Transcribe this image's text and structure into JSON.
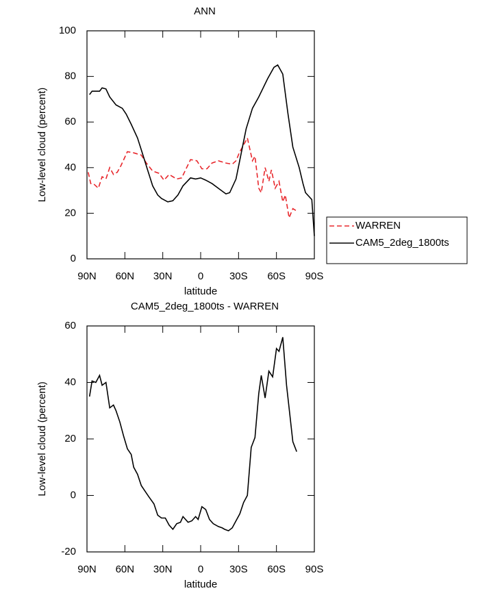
{
  "chart_data": [
    {
      "type": "line",
      "title": "ANN",
      "xlabel": "latitude",
      "ylabel": "Low-level cloud (percent)",
      "xlim": [
        90,
        -90
      ],
      "ylim": [
        0,
        100
      ],
      "xticks": [
        {
          "value": 90,
          "label": "90N"
        },
        {
          "value": 60,
          "label": "60N"
        },
        {
          "value": 30,
          "label": "30N"
        },
        0,
        {
          "value": -30,
          "label": "30S"
        },
        {
          "value": -60,
          "label": "60S"
        },
        {
          "value": -90,
          "label": "90S"
        }
      ],
      "yticks": [
        0,
        20,
        40,
        60,
        80,
        100
      ],
      "legend": "right",
      "series": [
        {
          "name": "WARREN",
          "color": "#e8262b",
          "line_style": "dashed",
          "x": [
            89,
            87,
            85,
            81,
            78,
            75,
            72,
            69,
            66,
            63,
            58,
            53,
            47,
            43,
            38,
            33,
            29,
            25,
            19,
            15,
            8,
            3,
            -1,
            -5,
            -9,
            -14,
            -20,
            -25,
            -28,
            -31,
            -35,
            -37,
            -41,
            -43,
            -46,
            -48,
            -51,
            -54,
            -56,
            -59,
            -62,
            -65,
            -67,
            -70,
            -73,
            -76
          ],
          "values": [
            38,
            33,
            33,
            31,
            36,
            35,
            40,
            37,
            38,
            41,
            47,
            46.5,
            45.5,
            42,
            38.5,
            37.5,
            34.5,
            37,
            35,
            35.5,
            43.5,
            43,
            39.5,
            39.5,
            42,
            43,
            42,
            41.5,
            43,
            47,
            51,
            53,
            43,
            45,
            31,
            29,
            40,
            34,
            39,
            31,
            34,
            25,
            28,
            18,
            22,
            21
          ]
        },
        {
          "name": "CAM5_2deg_1800ts",
          "color": "#000000",
          "line_style": "solid",
          "x": [
            88,
            86,
            80,
            78,
            75,
            72,
            67,
            62,
            59,
            55,
            50,
            46,
            42,
            38,
            34,
            31,
            26,
            22,
            18,
            14,
            8,
            4,
            0,
            -4,
            -9,
            -15,
            -20,
            -23,
            -28,
            -32,
            -36,
            -41,
            -46,
            -53,
            -58,
            -61,
            -65,
            -69,
            -73,
            -78,
            -81,
            -83,
            -88,
            -90
          ],
          "values": [
            72,
            73.5,
            73.5,
            75,
            74.5,
            71,
            67.5,
            66,
            63.5,
            59,
            53,
            46,
            39,
            32,
            28,
            26.5,
            25,
            25.5,
            28,
            32,
            35.5,
            35,
            35.5,
            34.5,
            33,
            30.5,
            28.5,
            29,
            35,
            46,
            57,
            66,
            71,
            79,
            84,
            85,
            81,
            64,
            49,
            40,
            33,
            29,
            26,
            10
          ]
        }
      ]
    },
    {
      "type": "line",
      "title": "CAM5_2deg_1800ts - WARREN",
      "xlabel": "latitude",
      "ylabel": "Low-level cloud (percent)",
      "xlim": [
        90,
        -90
      ],
      "ylim": [
        -20,
        60
      ],
      "xticks": [
        {
          "value": 90,
          "label": "90N"
        },
        {
          "value": 60,
          "label": "60N"
        },
        {
          "value": 30,
          "label": "30N"
        },
        0,
        {
          "value": -30,
          "label": "30S"
        },
        {
          "value": -60,
          "label": "60S"
        },
        {
          "value": -90,
          "label": "90S"
        }
      ],
      "yticks": [
        -20,
        0,
        20,
        40,
        60
      ],
      "series": [
        {
          "color": "#000000",
          "line_style": "solid",
          "x": [
            88,
            86,
            83,
            80,
            78,
            75,
            72,
            69,
            67,
            64,
            61,
            58,
            55,
            53,
            50,
            47,
            44,
            41,
            37,
            34,
            31,
            28,
            25,
            22,
            19,
            16,
            14,
            10,
            7,
            4,
            2,
            -1,
            -4,
            -7,
            -10,
            -14,
            -17,
            -19,
            -22,
            -25,
            -28,
            -31,
            -34,
            -37,
            -40,
            -43,
            -46,
            -48,
            -51,
            -54,
            -57,
            -60,
            -62,
            -65,
            -68,
            -70,
            -73,
            -76
          ],
          "values": [
            35,
            40.5,
            40,
            42.5,
            39,
            40,
            31,
            32,
            30,
            26,
            21,
            16.5,
            14.5,
            10,
            7.5,
            3.5,
            1.5,
            -0.5,
            -3,
            -7,
            -8,
            -8,
            -10.5,
            -12,
            -10,
            -9.5,
            -7.5,
            -9.5,
            -9,
            -7.5,
            -8.5,
            -4,
            -5,
            -8.5,
            -10,
            -11,
            -11.5,
            -12,
            -12.5,
            -11.5,
            -9,
            -6.5,
            -2.5,
            0,
            17,
            20.5,
            36,
            42.5,
            34.5,
            44,
            42,
            52,
            51,
            56,
            39,
            31,
            19,
            15.5
          ]
        }
      ]
    }
  ]
}
